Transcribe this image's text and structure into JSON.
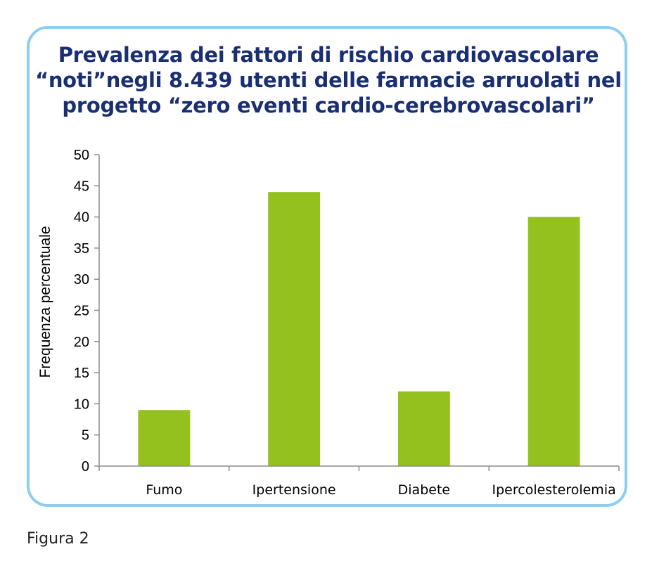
{
  "chart_data": {
    "type": "bar",
    "title_lines": [
      "Prevalenza dei fattori di rischio cardiovascolare",
      "“noti”negli 8.439 utenti delle farmacie arruolati nel",
      "progetto “zero eventi cardio-cerebrovascolari”"
    ],
    "ylabel": "Frequenza percentuale",
    "xlabel": "",
    "categories": [
      "Fumo",
      "Ipertensione",
      "Diabete",
      "Ipercolesterolemia"
    ],
    "values": [
      9,
      44,
      12,
      40
    ],
    "ylim": [
      0,
      50
    ],
    "yticks": [
      0,
      5,
      10,
      15,
      20,
      25,
      30,
      35,
      40,
      45,
      50
    ],
    "grid": false,
    "legend": "none",
    "bar_color": "#95c11f"
  },
  "caption": "Figura 2"
}
